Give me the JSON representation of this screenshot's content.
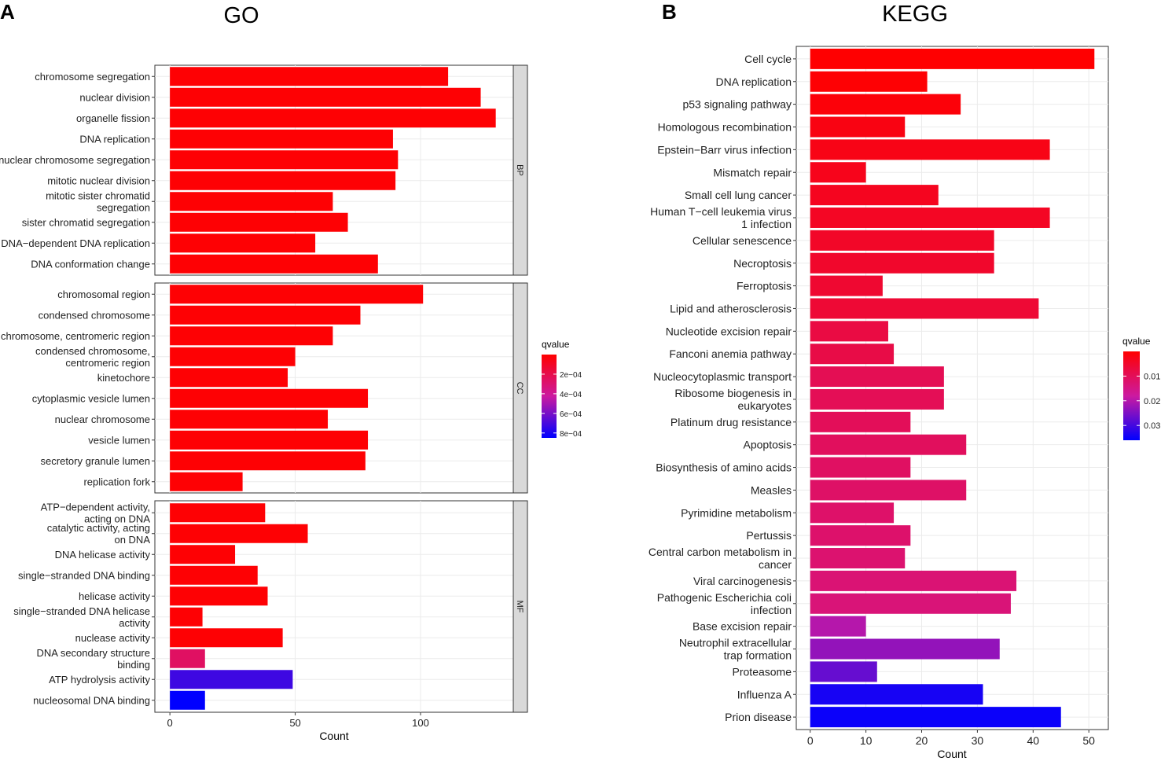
{
  "panel_a": {
    "letter": "A",
    "chart_data": {
      "type": "bar",
      "orientation": "horizontal",
      "title": "GO",
      "xlabel": "Count",
      "ylabel": "",
      "xlim": [
        -6,
        137
      ],
      "xticks": [
        0,
        50,
        100
      ],
      "grid": true,
      "facets": [
        {
          "name": "BP",
          "bars": [
            {
              "label": [
                "chromosome segregation"
              ],
              "value": 111,
              "qvalue": 1e-05
            },
            {
              "label": [
                "nuclear division"
              ],
              "value": 124,
              "qvalue": 1e-05
            },
            {
              "label": [
                "organelle fission"
              ],
              "value": 130,
              "qvalue": 1e-05
            },
            {
              "label": [
                "DNA replication"
              ],
              "value": 89,
              "qvalue": 1e-05
            },
            {
              "label": [
                "nuclear chromosome segregation"
              ],
              "value": 91,
              "qvalue": 1e-05
            },
            {
              "label": [
                "mitotic nuclear division"
              ],
              "value": 90,
              "qvalue": 1e-05
            },
            {
              "label": [
                "mitotic sister chromatid",
                "segregation"
              ],
              "value": 65,
              "qvalue": 1e-05
            },
            {
              "label": [
                "sister chromatid segregation"
              ],
              "value": 71,
              "qvalue": 1e-05
            },
            {
              "label": [
                "DNA−dependent DNA replication"
              ],
              "value": 58,
              "qvalue": 1e-05
            },
            {
              "label": [
                "DNA conformation change"
              ],
              "value": 83,
              "qvalue": 1e-05
            }
          ]
        },
        {
          "name": "CC",
          "bars": [
            {
              "label": [
                "chromosomal region"
              ],
              "value": 101,
              "qvalue": 1e-05
            },
            {
              "label": [
                "condensed chromosome"
              ],
              "value": 76,
              "qvalue": 1e-05
            },
            {
              "label": [
                "chromosome, centromeric region"
              ],
              "value": 65,
              "qvalue": 1e-05
            },
            {
              "label": [
                "condensed chromosome,",
                "centromeric region"
              ],
              "value": 50,
              "qvalue": 1e-05
            },
            {
              "label": [
                "kinetochore"
              ],
              "value": 47,
              "qvalue": 1e-05
            },
            {
              "label": [
                "cytoplasmic vesicle lumen"
              ],
              "value": 79,
              "qvalue": 1e-05
            },
            {
              "label": [
                "nuclear chromosome"
              ],
              "value": 63,
              "qvalue": 1e-05
            },
            {
              "label": [
                "vesicle lumen"
              ],
              "value": 79,
              "qvalue": 1e-05
            },
            {
              "label": [
                "secretory granule lumen"
              ],
              "value": 78,
              "qvalue": 1e-05
            },
            {
              "label": [
                "replication fork"
              ],
              "value": 29,
              "qvalue": 1e-05
            }
          ]
        },
        {
          "name": "MF",
          "bars": [
            {
              "label": [
                "ATP−dependent activity,",
                "acting on DNA"
              ],
              "value": 38,
              "qvalue": 1e-05
            },
            {
              "label": [
                "catalytic activity, acting",
                "on DNA"
              ],
              "value": 55,
              "qvalue": 1e-05
            },
            {
              "label": [
                "DNA helicase activity"
              ],
              "value": 26,
              "qvalue": 1e-05
            },
            {
              "label": [
                "single−stranded DNA binding"
              ],
              "value": 35,
              "qvalue": 1e-05
            },
            {
              "label": [
                "helicase activity"
              ],
              "value": 39,
              "qvalue": 1e-05
            },
            {
              "label": [
                "single−stranded DNA helicase",
                "activity"
              ],
              "value": 13,
              "qvalue": 1e-05
            },
            {
              "label": [
                "nuclease activity"
              ],
              "value": 45,
              "qvalue": 1e-05
            },
            {
              "label": [
                "DNA secondary structure",
                "binding"
              ],
              "value": 14,
              "qvalue": 0.00026
            },
            {
              "label": [
                "ATP hydrolysis activity"
              ],
              "value": 49,
              "qvalue": 0.00072
            },
            {
              "label": [
                "nucleosomal DNA binding"
              ],
              "value": 14,
              "qvalue": 0.00085
            }
          ]
        }
      ],
      "legend": {
        "title": "qvalue",
        "placement": "right",
        "range": [
          0,
          0.00085
        ],
        "ticks": [
          0.0002,
          0.0004,
          0.0006,
          0.0008
        ],
        "tick_labels": [
          "2e−04",
          "4e−04",
          "6e−04",
          "8e−04"
        ],
        "low_color": "#ff0000",
        "high_color": "#0000ff"
      }
    }
  },
  "panel_b": {
    "letter": "B",
    "chart_data": {
      "type": "bar",
      "orientation": "horizontal",
      "title": "KEGG",
      "xlabel": "Count",
      "ylabel": "",
      "xlim": [
        -2.5,
        53.5
      ],
      "xticks": [
        0,
        10,
        20,
        30,
        40,
        50
      ],
      "grid": true,
      "bars": [
        {
          "label": [
            "Cell cycle"
          ],
          "value": 51,
          "qvalue": 0.0001
        },
        {
          "label": [
            "DNA replication"
          ],
          "value": 21,
          "qvalue": 0.0005
        },
        {
          "label": [
            "p53 signaling pathway"
          ],
          "value": 27,
          "qvalue": 0.001
        },
        {
          "label": [
            "Homologous recombination"
          ],
          "value": 17,
          "qvalue": 0.002
        },
        {
          "label": [
            "Epstein−Barr virus infection"
          ],
          "value": 43,
          "qvalue": 0.0025
        },
        {
          "label": [
            "Mismatch repair"
          ],
          "value": 10,
          "qvalue": 0.003
        },
        {
          "label": [
            "Small cell lung cancer"
          ],
          "value": 23,
          "qvalue": 0.0035
        },
        {
          "label": [
            "Human T−cell leukemia virus",
            "1 infection"
          ],
          "value": 43,
          "qvalue": 0.004
        },
        {
          "label": [
            "Cellular senescence"
          ],
          "value": 33,
          "qvalue": 0.0045
        },
        {
          "label": [
            "Necroptosis"
          ],
          "value": 33,
          "qvalue": 0.005
        },
        {
          "label": [
            "Ferroptosis"
          ],
          "value": 13,
          "qvalue": 0.0055
        },
        {
          "label": [
            "Lipid and atherosclerosis"
          ],
          "value": 41,
          "qvalue": 0.006
        },
        {
          "label": [
            "Nucleotide excision repair"
          ],
          "value": 14,
          "qvalue": 0.0075
        },
        {
          "label": [
            "Fanconi anemia pathway"
          ],
          "value": 15,
          "qvalue": 0.008
        },
        {
          "label": [
            "Nucleocytoplasmic transport"
          ],
          "value": 24,
          "qvalue": 0.0095
        },
        {
          "label": [
            "Ribosome biogenesis in",
            "eukaryotes"
          ],
          "value": 24,
          "qvalue": 0.0097
        },
        {
          "label": [
            "Platinum drug resistance"
          ],
          "value": 18,
          "qvalue": 0.01
        },
        {
          "label": [
            "Apoptosis"
          ],
          "value": 28,
          "qvalue": 0.0105
        },
        {
          "label": [
            "Biosynthesis of amino acids"
          ],
          "value": 18,
          "qvalue": 0.011
        },
        {
          "label": [
            "Measles"
          ],
          "value": 28,
          "qvalue": 0.0115
        },
        {
          "label": [
            "Pyrimidine metabolism"
          ],
          "value": 15,
          "qvalue": 0.0118
        },
        {
          "label": [
            "Pertussis"
          ],
          "value": 18,
          "qvalue": 0.012
        },
        {
          "label": [
            "Central carbon metabolism in",
            "cancer"
          ],
          "value": 17,
          "qvalue": 0.0125
        },
        {
          "label": [
            "Viral carcinogenesis"
          ],
          "value": 37,
          "qvalue": 0.013
        },
        {
          "label": [
            "Pathogenic Escherichia coli",
            "infection"
          ],
          "value": 36,
          "qvalue": 0.0135
        },
        {
          "label": [
            "Base excision repair"
          ],
          "value": 10,
          "qvalue": 0.02
        },
        {
          "label": [
            "Neutrophil extracellular",
            "trap formation"
          ],
          "value": 34,
          "qvalue": 0.023
        },
        {
          "label": [
            "Proteasome"
          ],
          "value": 12,
          "qvalue": 0.027
        },
        {
          "label": [
            "Influenza A"
          ],
          "value": 31,
          "qvalue": 0.034
        },
        {
          "label": [
            "Prion disease"
          ],
          "value": 45,
          "qvalue": 0.035
        }
      ],
      "legend": {
        "title": "qvalue",
        "placement": "right",
        "range": [
          0,
          0.036
        ],
        "ticks": [
          0.01,
          0.02,
          0.03
        ],
        "tick_labels": [
          "0.01",
          "0.02",
          "0.03"
        ],
        "low_color": "#ff0000",
        "high_color": "#0000ff"
      }
    }
  }
}
